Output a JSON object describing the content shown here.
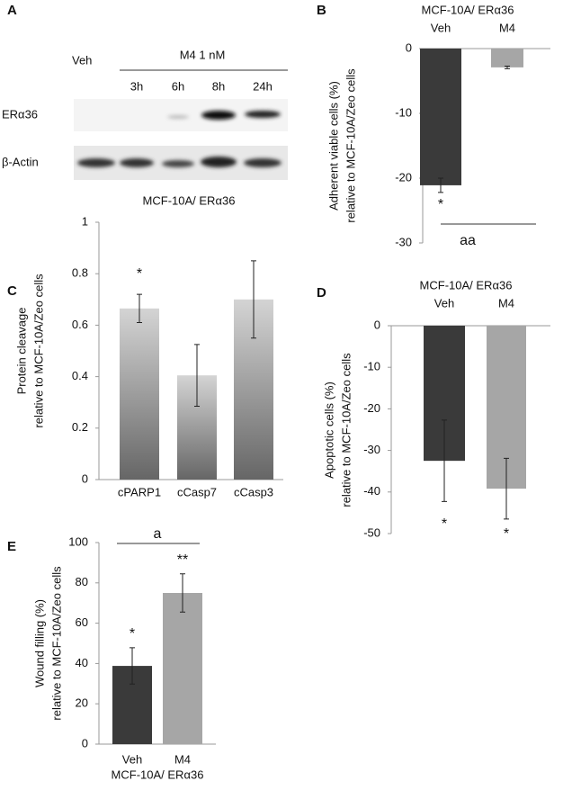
{
  "blot": {
    "panel": "A",
    "group_labels": [
      "Veh",
      "M4 1 nM"
    ],
    "lanes": [
      "3h",
      "6h",
      "8h",
      "24h"
    ],
    "rows": [
      "ERα36",
      "β-Actin"
    ]
  },
  "chart_data": [
    {
      "type": "bar",
      "panel": "B",
      "title": "MCF-10A/ ERα36",
      "categories": [
        "Veh",
        "M4"
      ],
      "values": [
        -21.1,
        -2.9
      ],
      "errors": [
        1.1,
        0.2
      ],
      "colors": [
        "#3a3a3a",
        "#a6a6a6"
      ],
      "ylim": [
        -30,
        0
      ],
      "yticks": [
        -30,
        -20,
        -10,
        0
      ],
      "y_label": [
        "Adherent viable cells (%)",
        "relative to MCF-10A/Zeo cells"
      ],
      "annotations": [
        "*",
        "aa"
      ]
    },
    {
      "type": "bar",
      "panel": "C",
      "title": "MCF-10A/ ERα36",
      "categories": [
        "cPARP1",
        "cCasp7",
        "cCasp3"
      ],
      "values": [
        0.665,
        0.405,
        0.7
      ],
      "errors": [
        0.055,
        0.12,
        0.15
      ],
      "colors": [
        "#a0a0a0",
        "#a0a0a0",
        "#a0a0a0"
      ],
      "gradient": true,
      "ylim": [
        0,
        1
      ],
      "yticks": [
        0,
        0.2,
        0.4,
        0.6,
        0.8,
        1
      ],
      "y_label": [
        "Protein cleavage",
        "relative to MCF-10A/Zeo cells"
      ],
      "annotations": [
        "*"
      ]
    },
    {
      "type": "bar",
      "panel": "D",
      "title": "MCF-10A/ ERα36",
      "categories": [
        "Veh",
        "M4"
      ],
      "values": [
        -32.5,
        -39.2
      ],
      "errors": [
        9.8,
        7.3
      ],
      "colors": [
        "#3a3a3a",
        "#a6a6a6"
      ],
      "ylim": [
        -50,
        0
      ],
      "yticks": [
        -50,
        -40,
        -30,
        -20,
        -10,
        0
      ],
      "y_label": [
        "Apoptotic cells (%)",
        "relative to MCF-10A/Zeo cells"
      ],
      "annotations": [
        "*",
        "*"
      ]
    },
    {
      "type": "bar",
      "panel": "E",
      "title": "MCF-10A/ ERα36",
      "categories": [
        "Veh",
        "M4"
      ],
      "values": [
        38.8,
        75
      ],
      "errors": [
        9,
        9.5
      ],
      "colors": [
        "#3a3a3a",
        "#a6a6a6"
      ],
      "ylim": [
        0,
        100
      ],
      "yticks": [
        0,
        20,
        40,
        60,
        80,
        100
      ],
      "y_label": [
        "Wound filling (%)",
        "relative to MCF-10A/Zeo cells"
      ],
      "annotations": [
        "*",
        "**",
        "a"
      ]
    }
  ]
}
